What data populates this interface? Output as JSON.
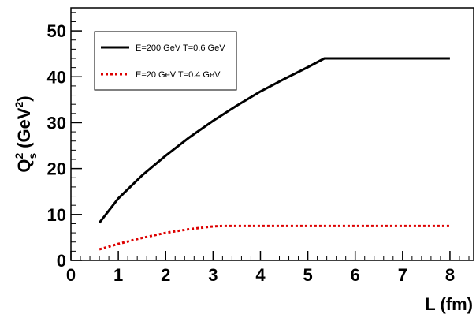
{
  "chart_data": {
    "type": "line",
    "xlabel": "L (fm)",
    "ylabel": {
      "main": "Q",
      "sup": "2",
      "sub": "s",
      "unit_prefix": "(GeV",
      "unit_sup": "2",
      "unit_suffix": ")"
    },
    "xlim": [
      0,
      8.5
    ],
    "ylim": [
      0,
      55
    ],
    "x_ticks": [
      0,
      1,
      2,
      3,
      4,
      5,
      6,
      7,
      8
    ],
    "y_ticks": [
      0,
      10,
      20,
      30,
      40,
      50
    ],
    "x_tick_labels": [
      "0",
      "1",
      "2",
      "3",
      "4",
      "5",
      "6",
      "7",
      "8"
    ],
    "y_tick_labels": [
      "0",
      "10",
      "20",
      "30",
      "40",
      "50"
    ],
    "grid": false,
    "legend_position": "top-left",
    "series": [
      {
        "name": "E=200 GeV T=0.6 GeV",
        "color": "#000000",
        "style": "solid",
        "points": [
          [
            0.6,
            8.2
          ],
          [
            1,
            13.5
          ],
          [
            1.5,
            18.5
          ],
          [
            2,
            22.8
          ],
          [
            2.5,
            26.8
          ],
          [
            3,
            30.4
          ],
          [
            3.5,
            33.7
          ],
          [
            4,
            36.8
          ],
          [
            4.5,
            39.5
          ],
          [
            5,
            42.1
          ],
          [
            5.35,
            44
          ],
          [
            6,
            44
          ],
          [
            7,
            44
          ],
          [
            8,
            44
          ]
        ]
      },
      {
        "name": "E=20 GeV T=0.4 GeV",
        "color": "#dd0000",
        "style": "dotted",
        "points": [
          [
            0.6,
            2.4
          ],
          [
            1,
            3.6
          ],
          [
            1.5,
            4.9
          ],
          [
            2,
            6.0
          ],
          [
            2.5,
            6.8
          ],
          [
            3,
            7.4
          ],
          [
            3.2,
            7.5
          ],
          [
            4,
            7.5
          ],
          [
            5,
            7.5
          ],
          [
            6,
            7.5
          ],
          [
            7,
            7.5
          ],
          [
            8,
            7.5
          ]
        ]
      }
    ]
  }
}
